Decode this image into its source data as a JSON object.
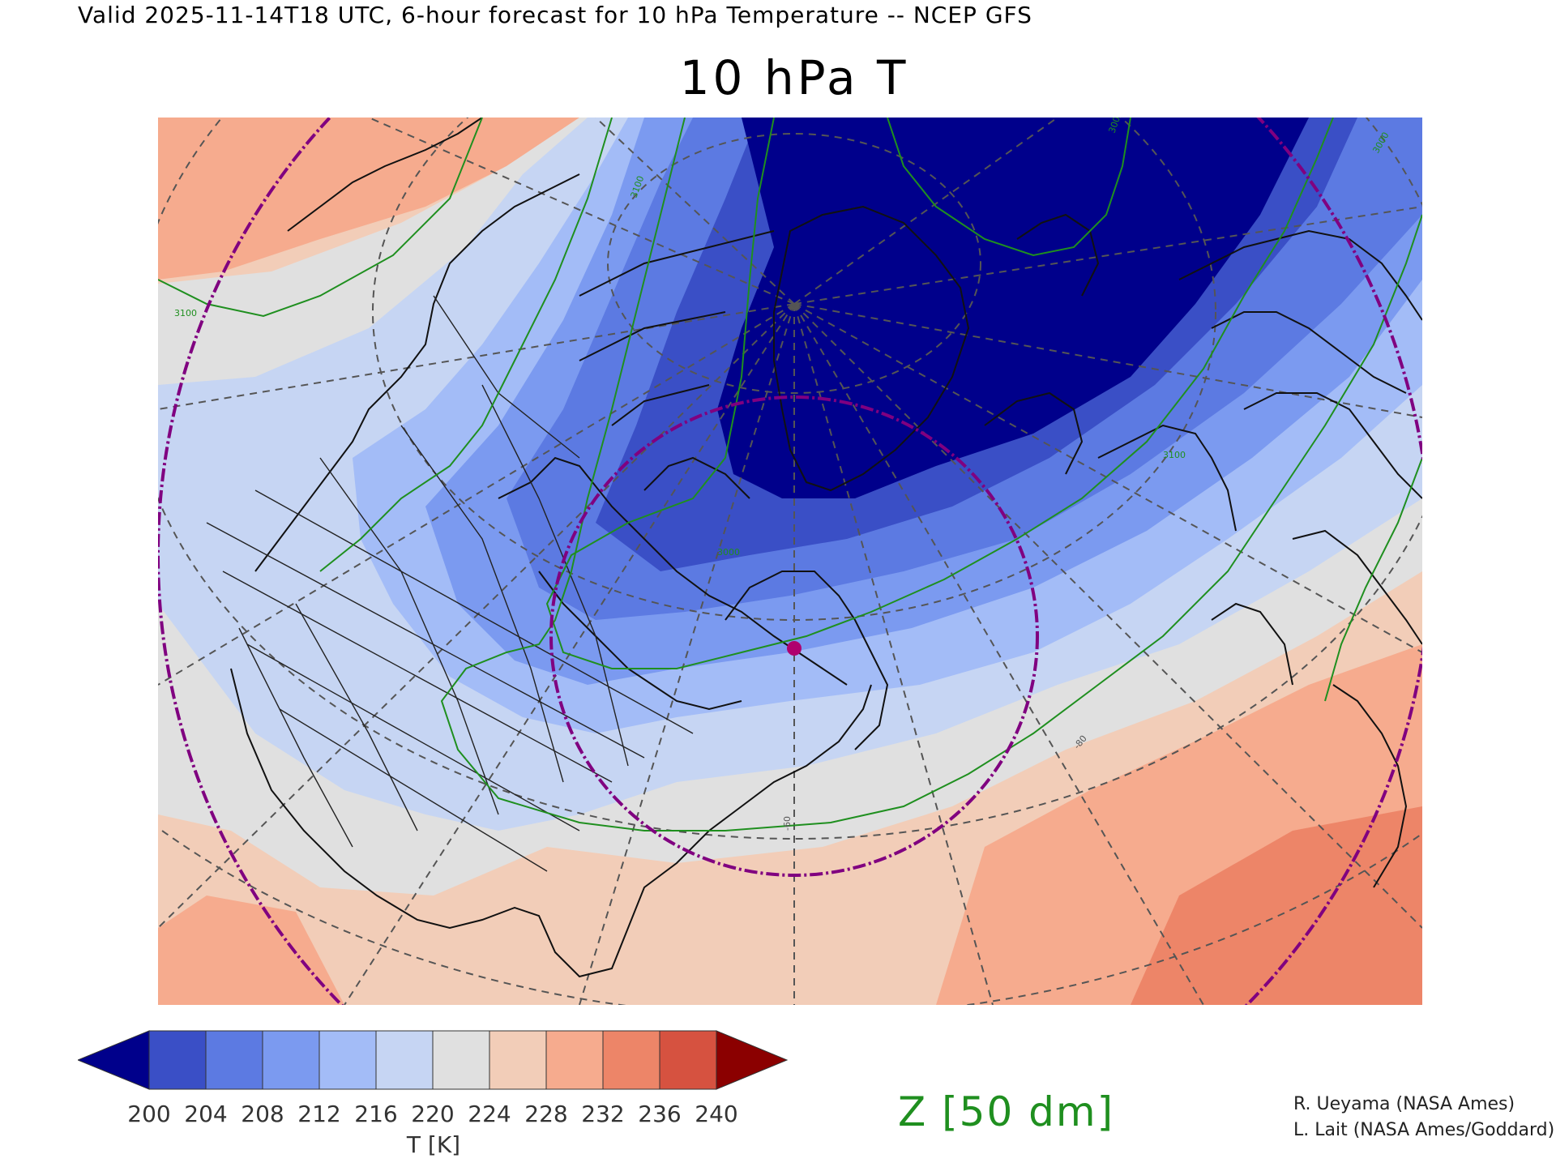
{
  "header": {
    "valid_line": "Valid 2025-11-14T18 UTC, 6-hour forecast for 10 hPa Temperature -- NCEP GFS"
  },
  "map": {
    "title": "10 hPa T",
    "projection": "polar-stereographic",
    "region": "North America / North Atlantic / Arctic",
    "contour_labels": [
      "3100",
      "3100",
      "3000",
      "3000",
      "3100",
      "-80",
      "-60",
      "3000"
    ],
    "range_ring_color": "#800080",
    "contour_color": "#1f8f1f",
    "marker_color": "#b0006e",
    "fill_color_palette": [
      "#00008b",
      "#3a4fc6",
      "#5c7ae2",
      "#7b9af0",
      "#a3bcf7",
      "#c6d5f3",
      "#e0e0e0",
      "#f2cdb8",
      "#f6ab8e",
      "#ed8568",
      "#d65240",
      "#8b0000"
    ]
  },
  "colorbar": {
    "ticks": [
      "200",
      "204",
      "208",
      "212",
      "216",
      "220",
      "224",
      "228",
      "232",
      "236",
      "240"
    ],
    "label": "T [K]",
    "under_color": "#00008b",
    "over_color": "#8b0000",
    "colors": [
      "#3a4fc6",
      "#5c7ae2",
      "#7b9af0",
      "#a3bcf7",
      "#c6d5f3",
      "#e0e0e0",
      "#f2cdb8",
      "#f6ab8e",
      "#ed8568",
      "#d65240"
    ]
  },
  "legend": {
    "contour_label": "Z [50 dm]"
  },
  "credits": {
    "line1": "R. Ueyama (NASA Ames)",
    "line2": "L. Lait (NASA Ames/Goddard)"
  }
}
